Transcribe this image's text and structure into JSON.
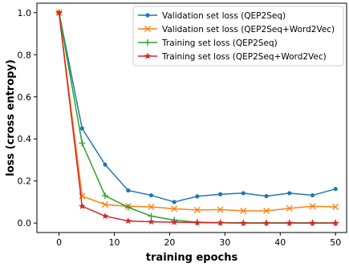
{
  "chart_data": {
    "type": "line",
    "xlabel": "training epochs",
    "ylabel": "loss (cross entropy)",
    "xlim": [
      -4,
      52
    ],
    "ylim": [
      -0.045,
      1.045
    ],
    "xticks": [
      0,
      10,
      20,
      30,
      40,
      50
    ],
    "yticks": [
      0.0,
      0.2,
      0.4,
      0.6,
      0.8,
      1.0
    ],
    "grid": false,
    "legend_position": "top-right",
    "x": [
      0,
      4.17,
      8.33,
      12.5,
      16.67,
      20.83,
      25,
      29.17,
      33.33,
      37.5,
      41.67,
      45.83,
      50
    ],
    "series": [
      {
        "name": "Validation set loss (QEP2Seq)",
        "color": "#1f77b4",
        "marker": "dot",
        "values": [
          1.0,
          0.45,
          0.278,
          0.155,
          0.132,
          0.1,
          0.127,
          0.137,
          0.142,
          0.128,
          0.142,
          0.132,
          0.162
        ]
      },
      {
        "name": "Validation set loss (QEP2Seq+Word2Vec)",
        "color": "#ff7f0e",
        "marker": "x",
        "values": [
          1.0,
          0.128,
          0.088,
          0.08,
          0.077,
          0.068,
          0.062,
          0.064,
          0.058,
          0.058,
          0.07,
          0.08,
          0.077
        ]
      },
      {
        "name": "Training set loss (QEP2Seq)",
        "color": "#2ca02c",
        "marker": "plus",
        "values": [
          1.0,
          0.38,
          0.13,
          0.075,
          0.033,
          0.014,
          0.004,
          0.002,
          0.001,
          0.001,
          0.001,
          0.001,
          0.001
        ]
      },
      {
        "name": "Training set loss (QEP2Seq+Word2Vec)",
        "color": "#d62728",
        "marker": "star",
        "values": [
          1.0,
          0.08,
          0.033,
          0.01,
          0.006,
          0.004,
          0.002,
          0.001,
          0.0,
          0.0,
          0.0,
          0.0,
          0.0
        ]
      }
    ]
  }
}
